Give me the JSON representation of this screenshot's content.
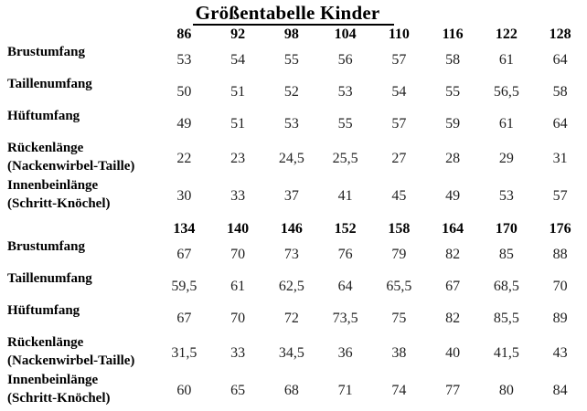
{
  "title": "Größentabelle Kinder",
  "table": {
    "blocks": [
      {
        "sizes": [
          "86",
          "92",
          "98",
          "104",
          "110",
          "116",
          "122",
          "128"
        ],
        "rows": [
          {
            "label": "Brustumfang",
            "sublabel": "",
            "values": [
              "53",
              "54",
              "55",
              "56",
              "57",
              "58",
              "61",
              "64"
            ]
          },
          {
            "label": "Taillenumfang",
            "sublabel": "",
            "values": [
              "50",
              "51",
              "52",
              "53",
              "54",
              "55",
              "56,5",
              "58"
            ]
          },
          {
            "label": "Hüftumfang",
            "sublabel": "",
            "values": [
              "49",
              "51",
              "53",
              "55",
              "57",
              "59",
              "61",
              "64"
            ]
          },
          {
            "label": "Rückenlänge",
            "sublabel": "(Nackenwirbel-Taille)",
            "values": [
              "22",
              "23",
              "24,5",
              "25,5",
              "27",
              "28",
              "29",
              "31"
            ]
          },
          {
            "label": "Innenbeinlänge",
            "sublabel": "(Schritt-Knöchel)",
            "values": [
              "30",
              "33",
              "37",
              "41",
              "45",
              "49",
              "53",
              "57"
            ]
          }
        ]
      },
      {
        "sizes": [
          "134",
          "140",
          "146",
          "152",
          "158",
          "164",
          "170",
          "176"
        ],
        "rows": [
          {
            "label": "Brustumfang",
            "sublabel": "",
            "values": [
              "67",
              "70",
              "73",
              "76",
              "79",
              "82",
              "85",
              "88"
            ]
          },
          {
            "label": "Taillenumfang",
            "sublabel": "",
            "values": [
              "59,5",
              "61",
              "62,5",
              "64",
              "65,5",
              "67",
              "68,5",
              "70"
            ]
          },
          {
            "label": "Hüftumfang",
            "sublabel": "",
            "values": [
              "67",
              "70",
              "72",
              "73,5",
              "75",
              "82",
              "85,5",
              "89"
            ]
          },
          {
            "label": "Rückenlänge",
            "sublabel": "(Nackenwirbel-Taille)",
            "values": [
              "31,5",
              "33",
              "34,5",
              "36",
              "38",
              "40",
              "41,5",
              "43"
            ]
          },
          {
            "label": "Innenbeinlänge",
            "sublabel": "(Schritt-Knöchel)",
            "values": [
              "60",
              "65",
              "68",
              "71",
              "74",
              "77",
              "80",
              "84"
            ]
          }
        ]
      }
    ]
  }
}
